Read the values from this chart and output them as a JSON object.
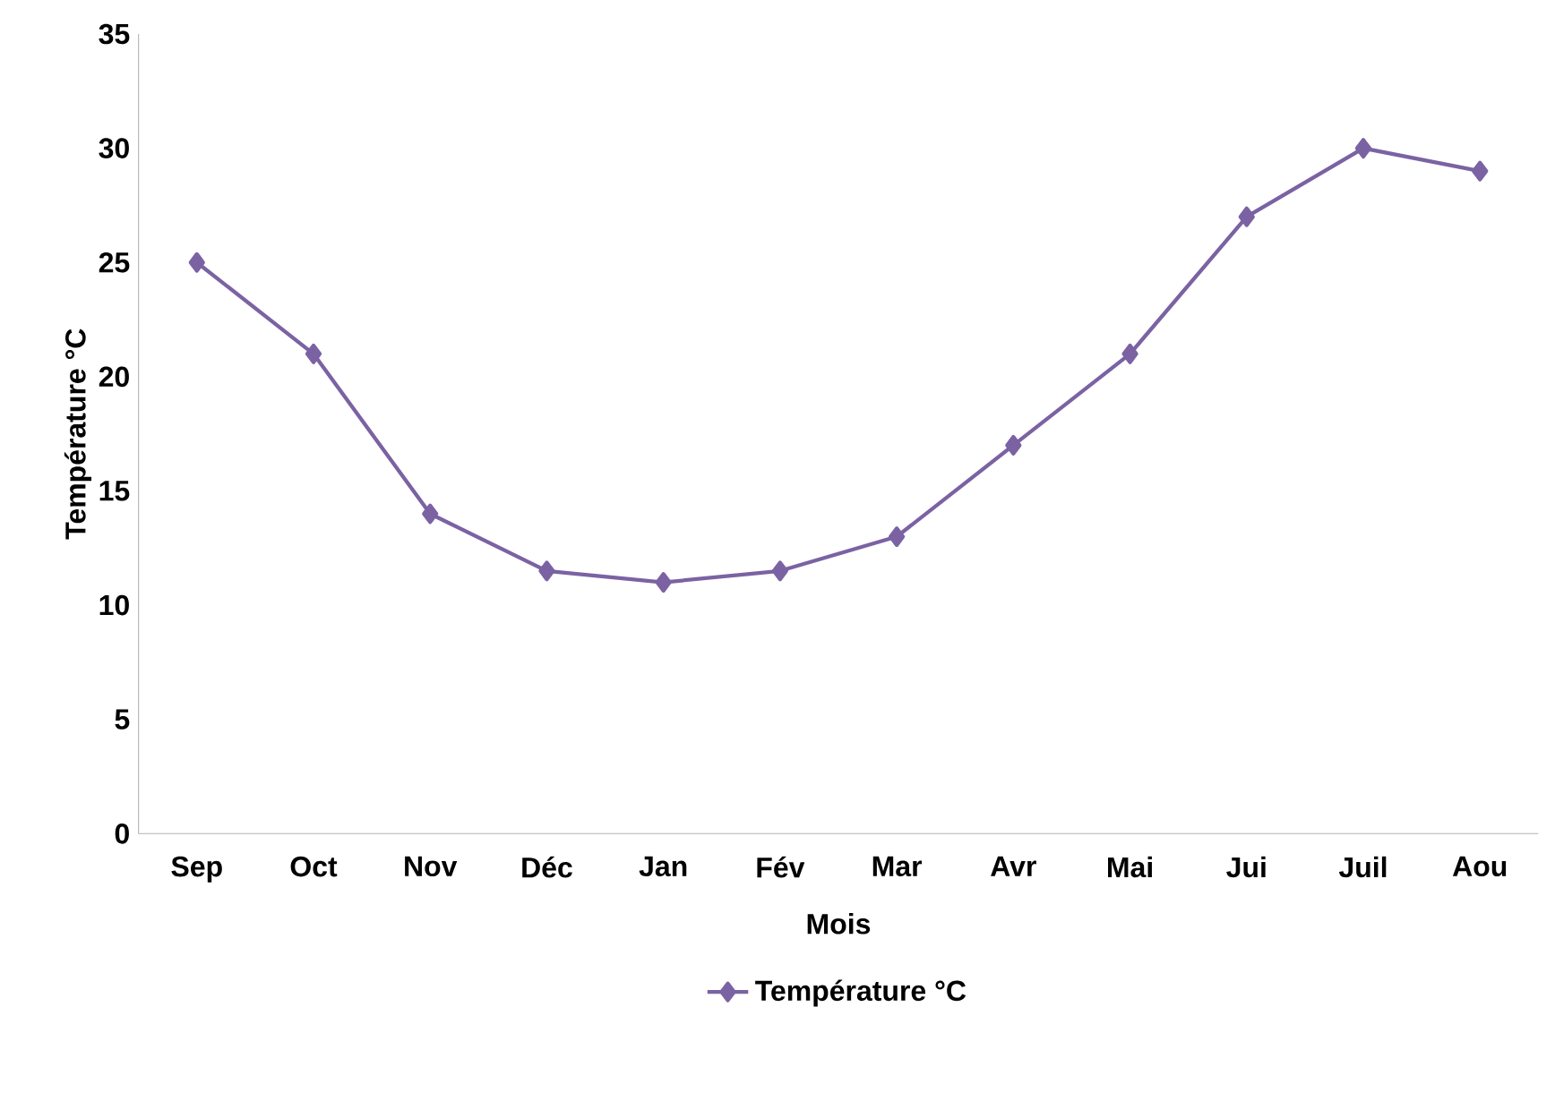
{
  "chart_data": {
    "type": "line",
    "xlabel": "Mois",
    "ylabel": "Température °C",
    "categories": [
      "Sep",
      "Oct",
      "Nov",
      "Déc",
      "Jan",
      "Fév",
      "Mar",
      "Avr",
      "Mai",
      "Jui",
      "Juil",
      "Aou"
    ],
    "series": [
      {
        "name": "Température °C",
        "color": "#7b62a3",
        "values": [
          25,
          21,
          14,
          11.5,
          11,
          11.5,
          13,
          17,
          21,
          27,
          30,
          29
        ]
      }
    ],
    "ylim": [
      0,
      35
    ],
    "yticks": [
      0,
      5,
      10,
      15,
      20,
      25,
      30,
      35
    ],
    "grid": false,
    "legend": "bottom",
    "marker": "diamond",
    "line_style": "solid"
  }
}
